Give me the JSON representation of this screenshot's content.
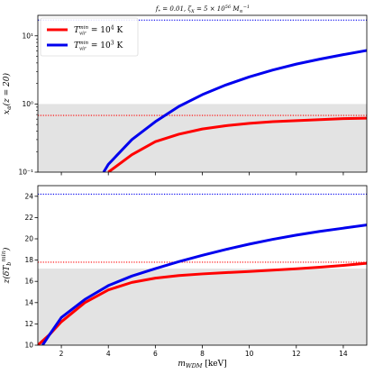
{
  "title": "f* = 0.01, ζX = 5 × 10^56 M⊙⁻¹",
  "colors": {
    "red": "#ff0000",
    "blue": "#0000ee",
    "shade": "#e3e3e3"
  },
  "legend": {
    "placement": "top-left",
    "entries": [
      {
        "label": "Tvir^min = 10^4 K",
        "color": "#ff0000"
      },
      {
        "label": "Tvir^min = 10^3 K",
        "color": "#0000ee"
      }
    ]
  },
  "chart_data": [
    {
      "type": "line",
      "panel": "top",
      "ylabel": "xα(z = 20)",
      "yscale": "log",
      "xlim": [
        1,
        15
      ],
      "ylim": [
        0.1,
        20
      ],
      "yticks": [
        0.1,
        1,
        10
      ],
      "ytick_labels": [
        "10⁻¹",
        "10⁰",
        "10¹"
      ],
      "shaded_below": 1.0,
      "series": [
        {
          "name": "Tvir^min = 10^4 K",
          "color": "#ff0000",
          "x": [
            4,
            5,
            6,
            7,
            8,
            9,
            10,
            11,
            12,
            13,
            14,
            15
          ],
          "y": [
            0.1,
            0.18,
            0.28,
            0.36,
            0.43,
            0.48,
            0.52,
            0.55,
            0.57,
            0.59,
            0.61,
            0.62
          ]
        },
        {
          "name": "Tvir^min = 10^3 K",
          "color": "#0000ee",
          "x": [
            3.8,
            4,
            5,
            6,
            7,
            8,
            9,
            10,
            11,
            12,
            13,
            14,
            15
          ],
          "y": [
            0.1,
            0.13,
            0.3,
            0.55,
            0.92,
            1.37,
            1.9,
            2.5,
            3.15,
            3.85,
            4.55,
            5.3,
            6.1
          ]
        }
      ],
      "hlines": [
        {
          "y": 17,
          "color": "#0000ee",
          "style": "dotted"
        },
        {
          "y": 0.68,
          "color": "#ff0000",
          "style": "dotted"
        }
      ]
    },
    {
      "type": "line",
      "panel": "bottom",
      "xlabel": "mWDM [keV]",
      "ylabel": "z(δTb^min)",
      "xlim": [
        1,
        15
      ],
      "ylim": [
        10,
        25
      ],
      "xticks": [
        2,
        4,
        6,
        8,
        10,
        12,
        14
      ],
      "xtick_labels": [
        "2",
        "4",
        "6",
        "8",
        "10",
        "12",
        "14"
      ],
      "yticks": [
        10,
        12,
        14,
        16,
        18,
        20,
        22,
        24
      ],
      "ytick_labels": [
        "10",
        "12",
        "14",
        "16",
        "18",
        "20",
        "22",
        "24"
      ],
      "shaded_below": 17.2,
      "series": [
        {
          "name": "Tvir^min = 10^4 K",
          "color": "#ff0000",
          "x": [
            1,
            1.5,
            2,
            3,
            4,
            5,
            6,
            7,
            8,
            9,
            10,
            11,
            12,
            13,
            14,
            15
          ],
          "y": [
            10.0,
            11.0,
            12.2,
            14.0,
            15.2,
            15.9,
            16.3,
            16.55,
            16.7,
            16.82,
            16.93,
            17.05,
            17.18,
            17.33,
            17.5,
            17.7
          ]
        },
        {
          "name": "Tvir^min = 10^3 K",
          "color": "#0000ee",
          "x": [
            1.2,
            1.5,
            2,
            3,
            4,
            5,
            6,
            7,
            8,
            9,
            10,
            11,
            12,
            13,
            14,
            15
          ],
          "y": [
            10.0,
            11.0,
            12.6,
            14.3,
            15.6,
            16.5,
            17.2,
            17.85,
            18.45,
            19.0,
            19.5,
            19.95,
            20.35,
            20.7,
            21.0,
            21.3
          ]
        }
      ],
      "hlines": [
        {
          "y": 24.2,
          "color": "#0000ee",
          "style": "dotted"
        },
        {
          "y": 17.8,
          "color": "#ff0000",
          "style": "dotted"
        }
      ]
    }
  ]
}
